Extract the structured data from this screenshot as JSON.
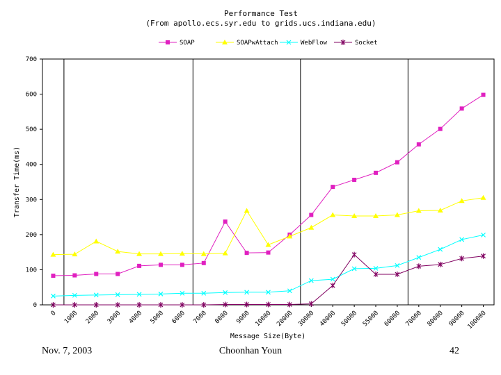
{
  "chart_data": {
    "type": "line",
    "title": "Performance Test",
    "subtitle": "(From apollo.ecs.syr.edu to grids.ucs.indiana.edu)",
    "xlabel": "Message Size(Byte)",
    "ylabel": "Transfer Time(ms)",
    "ylim": [
      0,
      700
    ],
    "yticks": [
      0,
      100,
      200,
      300,
      400,
      500,
      600,
      700
    ],
    "grid": "vertical lines at 1000, 7000, 30000, 70000",
    "legend_position": "top-center",
    "categories": [
      "0",
      "1000",
      "2000",
      "3000",
      "4000",
      "5000",
      "6000",
      "7000",
      "8000",
      "9000",
      "10000",
      "20000",
      "30000",
      "40000",
      "50000",
      "55000",
      "60000",
      "70000",
      "80000",
      "90000",
      "100000"
    ],
    "series": [
      {
        "name": "SOAP",
        "color": "#e020c0",
        "marker": "square",
        "values": [
          83,
          84,
          88,
          88,
          111,
          114,
          114,
          119,
          237,
          148,
          149,
          200,
          256,
          336,
          356,
          376,
          406,
          457,
          501,
          559,
          598
        ]
      },
      {
        "name": "SOAPwAttach",
        "color": "#ffff00",
        "marker": "triangle",
        "values": [
          143,
          144,
          181,
          152,
          145,
          145,
          146,
          145,
          147,
          268,
          171,
          195,
          220,
          256,
          253,
          253,
          256,
          268,
          269,
          296,
          305
        ]
      },
      {
        "name": "WebFlow",
        "color": "#00ffff",
        "marker": "x",
        "values": [
          25,
          27,
          28,
          29,
          30,
          31,
          33,
          33,
          35,
          36,
          36,
          40,
          69,
          73,
          103,
          104,
          112,
          135,
          158,
          186,
          199
        ]
      },
      {
        "name": "Socket",
        "color": "#800060",
        "marker": "star",
        "values": [
          0,
          0,
          0,
          0,
          0,
          0,
          0,
          0,
          1,
          1,
          1,
          1,
          3,
          55,
          143,
          87,
          87,
          110,
          115,
          132,
          139
        ]
      }
    ]
  },
  "footer": {
    "date": "Nov. 7, 2003",
    "author": "Choonhan Youn",
    "page": "42"
  }
}
